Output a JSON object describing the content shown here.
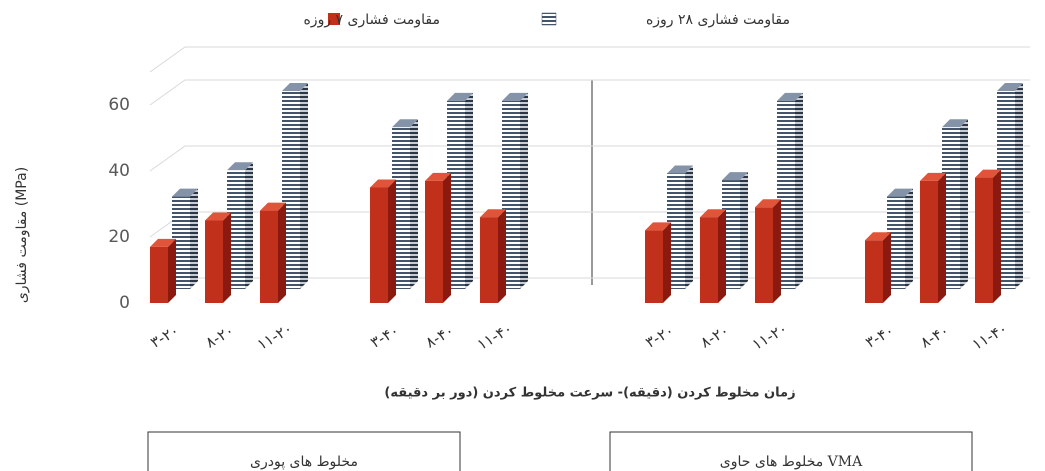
{
  "chart_data": {
    "type": "bar3d",
    "y_label": "مقاومت فشاری (MPa)",
    "x_label": "زمان مخلوط کردن (دقیقه)- سرعت مخلوط کردن (دور بر دقیقه)",
    "categories": [
      "۳-۲۰",
      "۸-۲۰",
      "۱۱-۲۰",
      null,
      "۳-۴۰",
      "۸-۴۰",
      "۱۱-۴۰",
      null,
      null,
      "۳-۲۰",
      "۸-۲۰",
      "۱۱-۲۰",
      null,
      "۳-۴۰",
      "۸-۴۰",
      "۱۱-۴۰"
    ],
    "series": [
      {
        "name": "مقاومت فشاری ۷ روزه",
        "color": "#c0301b",
        "values": [
          17,
          25,
          28,
          null,
          35,
          37,
          26,
          null,
          null,
          22,
          26,
          29,
          null,
          19,
          37,
          38
        ]
      },
      {
        "name": "مقاومت فشاری ۲۸ روزه",
        "color": "#44546a",
        "values": [
          28,
          36,
          60,
          null,
          49,
          57,
          57,
          null,
          null,
          35,
          33,
          57,
          null,
          28,
          49,
          60
        ]
      }
    ],
    "ylim": [
      0,
      70
    ],
    "yticks": [
      0,
      20,
      40,
      60
    ],
    "grid": true,
    "legend": "top",
    "groups": [
      "مخلوط های پودری",
      "مخلوط های حاوی VMA"
    ]
  }
}
